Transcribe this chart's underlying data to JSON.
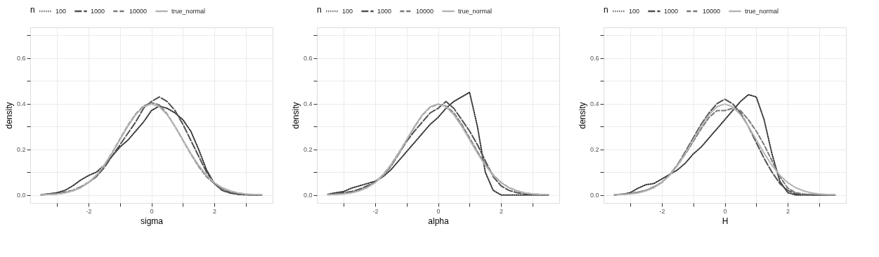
{
  "chart_data": [
    {
      "type": "line",
      "xlabel": "sigma",
      "ylabel": "density",
      "legend_title": "n",
      "legend": "top",
      "grid": true,
      "xlim": [
        -3.85,
        3.85
      ],
      "ylim": [
        -0.035,
        0.735
      ],
      "xticks": [
        {
          "value": -3,
          "label": null
        },
        -2,
        {
          "value": -1,
          "label": null
        },
        0,
        {
          "value": 1,
          "label": null
        },
        2,
        {
          "value": 3,
          "label": null
        }
      ],
      "yticks": [
        {
          "value": 0,
          "label": "0.0"
        },
        {
          "value": 0.1,
          "label": null
        },
        0.2,
        {
          "value": 0.3,
          "label": null
        },
        0.4,
        {
          "value": 0.5,
          "label": null
        },
        0.6,
        {
          "value": 0.7,
          "label": null
        }
      ],
      "x": [
        -3.5,
        -3.25,
        -3,
        -2.75,
        -2.5,
        -2.25,
        -2,
        -1.75,
        -1.5,
        -1.25,
        -1,
        -0.75,
        -0.5,
        -0.25,
        0,
        0.25,
        0.5,
        0.75,
        1,
        1.25,
        1.5,
        1.75,
        2,
        2.25,
        2.5,
        2.75,
        3,
        3.25,
        3.5
      ],
      "series": [
        {
          "name": "100",
          "color": "#303030",
          "line_style": "dotted",
          "values": [
            0.0,
            0.005,
            0.01,
            0.02,
            0.04,
            0.065,
            0.085,
            0.1,
            0.13,
            0.17,
            0.21,
            0.24,
            0.28,
            0.32,
            0.37,
            0.39,
            0.38,
            0.36,
            0.33,
            0.28,
            0.2,
            0.11,
            0.05,
            0.02,
            0.01,
            0.003,
            0.001,
            0.0,
            0.0
          ]
        },
        {
          "name": "1000",
          "color": "#505050",
          "line_style": "dashed",
          "values": [
            0.002,
            0.004,
            0.006,
            0.012,
            0.02,
            0.035,
            0.055,
            0.08,
            0.12,
            0.17,
            0.22,
            0.27,
            0.32,
            0.38,
            0.41,
            0.43,
            0.41,
            0.37,
            0.31,
            0.24,
            0.17,
            0.1,
            0.05,
            0.02,
            0.008,
            0.003,
            0.001,
            0.0,
            0.0
          ]
        },
        {
          "name": "10000",
          "color": "#787878",
          "line_style": "dashed",
          "values": [
            0.001,
            0.002,
            0.004,
            0.009,
            0.018,
            0.032,
            0.054,
            0.086,
            0.13,
            0.185,
            0.245,
            0.305,
            0.355,
            0.39,
            0.405,
            0.395,
            0.355,
            0.3,
            0.24,
            0.18,
            0.125,
            0.08,
            0.05,
            0.028,
            0.015,
            0.008,
            0.003,
            0.001,
            0.0
          ]
        },
        {
          "name": "true_normal",
          "color": "#b4b4b4",
          "line_style": "solid",
          "values": [
            0.001,
            0.002,
            0.004,
            0.009,
            0.018,
            0.032,
            0.054,
            0.086,
            0.13,
            0.183,
            0.242,
            0.301,
            0.352,
            0.387,
            0.399,
            0.387,
            0.352,
            0.301,
            0.242,
            0.183,
            0.13,
            0.086,
            0.054,
            0.032,
            0.018,
            0.009,
            0.004,
            0.002,
            0.001
          ]
        }
      ]
    },
    {
      "type": "line",
      "xlabel": "alpha",
      "ylabel": "density",
      "legend_title": "n",
      "legend": "top",
      "grid": true,
      "xlim": [
        -3.85,
        3.85
      ],
      "ylim": [
        -0.035,
        0.735
      ],
      "xticks": [
        {
          "value": -3,
          "label": null
        },
        -2,
        {
          "value": -1,
          "label": null
        },
        0,
        {
          "value": 1,
          "label": null
        },
        2,
        {
          "value": 3,
          "label": null
        }
      ],
      "yticks": [
        {
          "value": 0,
          "label": "0.0"
        },
        {
          "value": 0.1,
          "label": null
        },
        0.2,
        {
          "value": 0.3,
          "label": null
        },
        0.4,
        {
          "value": 0.5,
          "label": null
        },
        0.6,
        {
          "value": 0.7,
          "label": null
        }
      ],
      "x": [
        -3.5,
        -3.25,
        -3,
        -2.75,
        -2.5,
        -2.25,
        -2,
        -1.75,
        -1.5,
        -1.25,
        -1,
        -0.75,
        -0.5,
        -0.25,
        0,
        0.25,
        0.5,
        0.75,
        1,
        1.25,
        1.5,
        1.75,
        2,
        2.25,
        2.5,
        2.75,
        3,
        3.25,
        3.5
      ],
      "series": [
        {
          "name": "100",
          "color": "#303030",
          "line_style": "dotted",
          "values": [
            0.003,
            0.01,
            0.015,
            0.03,
            0.04,
            0.05,
            0.06,
            0.08,
            0.11,
            0.15,
            0.19,
            0.23,
            0.27,
            0.31,
            0.34,
            0.38,
            0.41,
            0.43,
            0.45,
            0.3,
            0.1,
            0.02,
            0.0,
            0.0,
            0.0,
            0.0,
            0.0,
            0.0,
            0.0
          ]
        },
        {
          "name": "1000",
          "color": "#505050",
          "line_style": "dashed",
          "values": [
            0.002,
            0.005,
            0.01,
            0.015,
            0.025,
            0.04,
            0.055,
            0.085,
            0.125,
            0.18,
            0.235,
            0.28,
            0.32,
            0.36,
            0.38,
            0.41,
            0.38,
            0.33,
            0.28,
            0.22,
            0.15,
            0.08,
            0.04,
            0.02,
            0.01,
            0.005,
            0.002,
            0.0,
            0.0
          ]
        },
        {
          "name": "10000",
          "color": "#787878",
          "line_style": "dashed",
          "values": [
            0.001,
            0.003,
            0.006,
            0.011,
            0.02,
            0.034,
            0.055,
            0.088,
            0.132,
            0.185,
            0.24,
            0.298,
            0.35,
            0.385,
            0.398,
            0.39,
            0.36,
            0.31,
            0.25,
            0.19,
            0.135,
            0.088,
            0.055,
            0.032,
            0.018,
            0.009,
            0.004,
            0.002,
            0.001
          ]
        },
        {
          "name": "true_normal",
          "color": "#b4b4b4",
          "line_style": "solid",
          "values": [
            0.001,
            0.002,
            0.004,
            0.009,
            0.018,
            0.032,
            0.054,
            0.086,
            0.13,
            0.183,
            0.242,
            0.301,
            0.352,
            0.387,
            0.399,
            0.387,
            0.352,
            0.301,
            0.242,
            0.183,
            0.13,
            0.086,
            0.054,
            0.032,
            0.018,
            0.009,
            0.004,
            0.002,
            0.001
          ]
        }
      ]
    },
    {
      "type": "line",
      "xlabel": "H",
      "ylabel": "density",
      "legend_title": "n",
      "legend": "top",
      "grid": true,
      "xlim": [
        -3.85,
        3.85
      ],
      "ylim": [
        -0.035,
        0.735
      ],
      "xticks": [
        {
          "value": -3,
          "label": null
        },
        -2,
        {
          "value": -1,
          "label": null
        },
        0,
        {
          "value": 1,
          "label": null
        },
        2,
        {
          "value": 3,
          "label": null
        }
      ],
      "yticks": [
        {
          "value": 0,
          "label": "0.0"
        },
        {
          "value": 0.1,
          "label": null
        },
        0.2,
        {
          "value": 0.3,
          "label": null
        },
        0.4,
        {
          "value": 0.5,
          "label": null
        },
        0.6,
        {
          "value": 0.7,
          "label": null
        }
      ],
      "x": [
        -3.5,
        -3.25,
        -3,
        -2.75,
        -2.5,
        -2.25,
        -2,
        -1.75,
        -1.5,
        -1.25,
        -1,
        -0.75,
        -0.5,
        -0.25,
        0,
        0.25,
        0.5,
        0.75,
        1,
        1.25,
        1.5,
        1.75,
        2,
        2.25,
        2.5,
        2.75,
        3,
        3.25,
        3.5
      ],
      "series": [
        {
          "name": "100",
          "color": "#303030",
          "line_style": "dotted",
          "values": [
            0.0,
            0.003,
            0.01,
            0.03,
            0.045,
            0.05,
            0.07,
            0.09,
            0.11,
            0.14,
            0.18,
            0.21,
            0.25,
            0.29,
            0.33,
            0.37,
            0.41,
            0.44,
            0.43,
            0.33,
            0.18,
            0.06,
            0.01,
            0.0,
            0.0,
            0.0,
            0.0,
            0.0,
            0.0
          ]
        },
        {
          "name": "1000",
          "color": "#505050",
          "line_style": "dashed",
          "values": [
            0.001,
            0.003,
            0.006,
            0.012,
            0.02,
            0.035,
            0.055,
            0.088,
            0.133,
            0.19,
            0.25,
            0.31,
            0.36,
            0.4,
            0.42,
            0.4,
            0.36,
            0.3,
            0.23,
            0.16,
            0.1,
            0.05,
            0.02,
            0.005,
            0.002,
            0.0,
            0.0,
            0.0,
            0.0
          ]
        },
        {
          "name": "10000",
          "color": "#787878",
          "line_style": "dashed",
          "values": [
            0.001,
            0.003,
            0.006,
            0.012,
            0.02,
            0.034,
            0.055,
            0.088,
            0.13,
            0.18,
            0.235,
            0.29,
            0.34,
            0.37,
            0.37,
            0.38,
            0.37,
            0.33,
            0.28,
            0.22,
            0.15,
            0.08,
            0.03,
            0.01,
            0.004,
            0.002,
            0.001,
            0.0,
            0.0
          ]
        },
        {
          "name": "true_normal",
          "color": "#b4b4b4",
          "line_style": "solid",
          "values": [
            0.001,
            0.002,
            0.004,
            0.009,
            0.018,
            0.032,
            0.054,
            0.086,
            0.13,
            0.183,
            0.242,
            0.301,
            0.352,
            0.387,
            0.399,
            0.387,
            0.352,
            0.301,
            0.242,
            0.183,
            0.13,
            0.086,
            0.054,
            0.032,
            0.018,
            0.009,
            0.004,
            0.002,
            0.001
          ]
        }
      ]
    }
  ]
}
